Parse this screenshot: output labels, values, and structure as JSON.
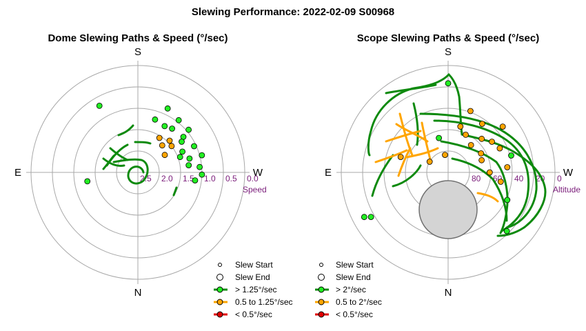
{
  "title": "Slewing Performance: 2022-02-09 S00968",
  "chart_data": [
    {
      "type": "polar-scatter",
      "subtitle": "Dome Slewing Paths & Speed (°/sec)",
      "compass": {
        "top": "S",
        "left": "E",
        "right": "W",
        "bottom": "N"
      },
      "radial_axis_label": "Speed",
      "radial_ticks": [
        "2.5",
        "2.0",
        "1.5",
        "1.0",
        "0.5",
        "0.0"
      ],
      "radial_range": [
        2.5,
        0.0
      ],
      "legend": [
        {
          "label": "Slew Start",
          "kind": "start"
        },
        {
          "label": "Slew End",
          "kind": "end"
        },
        {
          "label": "> 1.25°/sec",
          "kind": "line",
          "color": "#00a000",
          "fill": "#22ee22"
        },
        {
          "label": "0.5 to 1.25°/sec",
          "kind": "line",
          "color": "#ffa500",
          "fill": "#ffa500"
        },
        {
          "label": "< 0.5°/sec",
          "kind": "line",
          "color": "#e00000",
          "fill": "#e00000"
        }
      ],
      "points": [
        {
          "az": 225,
          "speed": 1.45,
          "color": "orange"
        },
        {
          "az": 222,
          "speed": 1.65,
          "color": "orange"
        },
        {
          "az": 232,
          "speed": 1.5,
          "color": "orange"
        },
        {
          "az": 212,
          "speed": 1.55,
          "color": "orange"
        },
        {
          "az": 237,
          "speed": 1.75,
          "color": "orange"
        },
        {
          "az": 218,
          "speed": 1.2,
          "color": "green"
        },
        {
          "az": 210,
          "speed": 1.25,
          "color": "green"
        },
        {
          "az": 198,
          "speed": 1.2,
          "color": "green"
        },
        {
          "az": 232,
          "speed": 1.15,
          "color": "green"
        },
        {
          "az": 245,
          "speed": 1.35,
          "color": "green"
        },
        {
          "az": 255,
          "speed": 1.25,
          "color": "green"
        },
        {
          "az": 250,
          "speed": 1.45,
          "color": "green"
        },
        {
          "az": 235,
          "speed": 1.25,
          "color": "green"
        },
        {
          "az": 265,
          "speed": 1.05,
          "color": "green"
        },
        {
          "az": 255,
          "speed": 0.95,
          "color": "green"
        },
        {
          "az": 262,
          "speed": 1.3,
          "color": "green"
        },
        {
          "az": 245,
          "speed": 1.05,
          "color": "green"
        },
        {
          "az": 230,
          "speed": 0.95,
          "color": "green"
        },
        {
          "az": 218,
          "speed": 0.95,
          "color": "green"
        },
        {
          "az": 272,
          "speed": 1.0,
          "color": "green"
        },
        {
          "az": 278,
          "speed": 1.15,
          "color": "green"
        },
        {
          "az": 150,
          "speed": 0.7,
          "color": "green"
        },
        {
          "az": 205,
          "speed": 0.85,
          "color": "green"
        },
        {
          "az": 80,
          "speed": 1.3,
          "color": "green"
        }
      ]
    },
    {
      "type": "polar-scatter",
      "subtitle": "Scope Slewing Paths & Speed (°/sec)",
      "compass": {
        "top": "S",
        "left": "E",
        "right": "W",
        "bottom": "N"
      },
      "radial_axis_label": "Altitude",
      "radial_ticks": [
        "80",
        "60",
        "40",
        "20",
        "0"
      ],
      "radial_range": [
        90,
        0
      ],
      "legend": [
        {
          "label": "Slew Start",
          "kind": "start"
        },
        {
          "label": "Slew End",
          "kind": "end"
        },
        {
          "label": "> 2°/sec",
          "kind": "line",
          "color": "#00a000",
          "fill": "#22ee22"
        },
        {
          "label": "0.5 to 2°/sec",
          "kind": "line",
          "color": "#ffa500",
          "fill": "#ffa500"
        },
        {
          "label": "< 0.5°/sec",
          "kind": "line",
          "color": "#e00000",
          "fill": "#e00000"
        }
      ],
      "points": [
        {
          "az": 180,
          "alt": 15,
          "color": "green"
        },
        {
          "az": 200,
          "alt": 35,
          "color": "orange"
        },
        {
          "az": 215,
          "alt": 40,
          "color": "orange"
        },
        {
          "az": 225,
          "alt": 50,
          "color": "orange"
        },
        {
          "az": 235,
          "alt": 45,
          "color": "orange"
        },
        {
          "az": 245,
          "alt": 42,
          "color": "orange"
        },
        {
          "az": 255,
          "alt": 35,
          "color": "green"
        },
        {
          "az": 265,
          "alt": 40,
          "color": "orange"
        },
        {
          "az": 280,
          "alt": 45,
          "color": "orange"
        },
        {
          "az": 295,
          "alt": 35,
          "color": "green"
        },
        {
          "az": 195,
          "alt": 50,
          "color": "orange"
        },
        {
          "az": 205,
          "alt": 55,
          "color": "orange"
        },
        {
          "az": 220,
          "alt": 60,
          "color": "orange"
        },
        {
          "az": 240,
          "alt": 58,
          "color": "orange"
        },
        {
          "az": 165,
          "alt": 60,
          "color": "green"
        },
        {
          "az": 170,
          "alt": 75,
          "color": "orange"
        },
        {
          "az": 230,
          "alt": 30,
          "color": "orange"
        },
        {
          "az": 250,
          "alt": 60,
          "color": "orange"
        },
        {
          "az": 270,
          "alt": 55,
          "color": "orange"
        },
        {
          "az": 120,
          "alt": 72,
          "color": "orange"
        },
        {
          "az": 108,
          "alt": 48,
          "color": "orange"
        },
        {
          "az": 60,
          "alt": 15,
          "color": "green"
        },
        {
          "az": 62,
          "alt": 10,
          "color": "green"
        },
        {
          "az": 315,
          "alt": 20,
          "color": "green"
        }
      ]
    }
  ]
}
